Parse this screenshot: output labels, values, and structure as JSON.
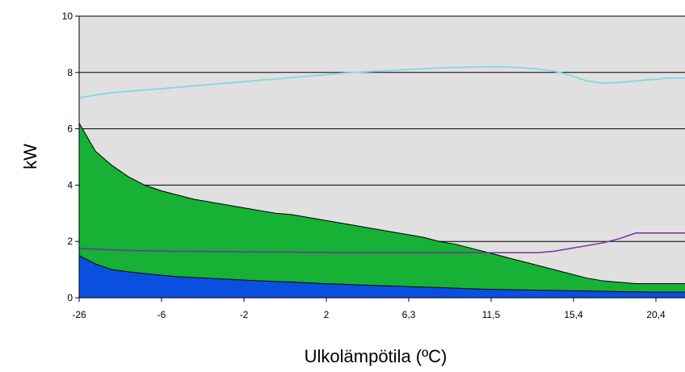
{
  "chart_data": {
    "type": "area",
    "xlabel": "Ulkolämpötila (ºC)",
    "ylabel": "kW",
    "ylim": [
      0,
      10
    ],
    "yticks": [
      0,
      2,
      4,
      6,
      8,
      10
    ],
    "x_tick_labels": [
      "-26",
      "-6",
      "-2",
      "2",
      "6,3",
      "11,5",
      "15,4",
      "20,4"
    ],
    "grid": "horizontal",
    "x_position": [
      0,
      20,
      40,
      60,
      80,
      100,
      120,
      140,
      160,
      180,
      200,
      220,
      240,
      260,
      280,
      300,
      320,
      340,
      360,
      380,
      400,
      420,
      440,
      460,
      480,
      500,
      520,
      540,
      560,
      580,
      600,
      620,
      640,
      660,
      680,
      700,
      720,
      740
    ],
    "series": [
      {
        "values": [
          6.2,
          5.2,
          4.7,
          4.3,
          4.0,
          3.8,
          3.65,
          3.5,
          3.4,
          3.3,
          3.2,
          3.1,
          3.0,
          2.95,
          2.85,
          2.75,
          2.65,
          2.55,
          2.45,
          2.35,
          2.25,
          2.15,
          2.0,
          1.9,
          1.75,
          1.6,
          1.45,
          1.3,
          1.15,
          1.0,
          0.85,
          0.7,
          0.6,
          0.55,
          0.5,
          0.5,
          0.5,
          0.5
        ],
        "color": "#16b135"
      },
      {
        "values": [
          1.5,
          1.2,
          1.0,
          0.92,
          0.86,
          0.8,
          0.75,
          0.72,
          0.69,
          0.66,
          0.63,
          0.6,
          0.58,
          0.56,
          0.53,
          0.5,
          0.48,
          0.46,
          0.44,
          0.42,
          0.4,
          0.38,
          0.36,
          0.34,
          0.32,
          0.3,
          0.29,
          0.28,
          0.27,
          0.26,
          0.25,
          0.24,
          0.23,
          0.22,
          0.21,
          0.2,
          0.2,
          0.2
        ],
        "color": "#0a4fe0"
      },
      {
        "values": [
          1.75,
          1.73,
          1.7,
          1.68,
          1.67,
          1.66,
          1.65,
          1.65,
          1.64,
          1.64,
          1.63,
          1.63,
          1.62,
          1.62,
          1.61,
          1.61,
          1.6,
          1.6,
          1.6,
          1.6,
          1.6,
          1.6,
          1.6,
          1.6,
          1.6,
          1.6,
          1.6,
          1.6,
          1.6,
          1.65,
          1.75,
          1.85,
          1.95,
          2.1,
          2.3,
          2.3,
          2.3,
          2.3
        ],
        "color": "#7b2fa0"
      },
      {
        "values": [
          7.1,
          7.2,
          7.28,
          7.33,
          7.38,
          7.42,
          7.47,
          7.52,
          7.57,
          7.62,
          7.67,
          7.72,
          7.77,
          7.82,
          7.87,
          7.92,
          7.97,
          8.01,
          8.04,
          8.07,
          8.1,
          8.13,
          8.16,
          8.18,
          8.19,
          8.2,
          8.2,
          8.17,
          8.12,
          8.05,
          7.9,
          7.7,
          7.62,
          7.65,
          7.7,
          7.75,
          7.8,
          7.8
        ],
        "color": "#8ad8e0"
      }
    ]
  }
}
